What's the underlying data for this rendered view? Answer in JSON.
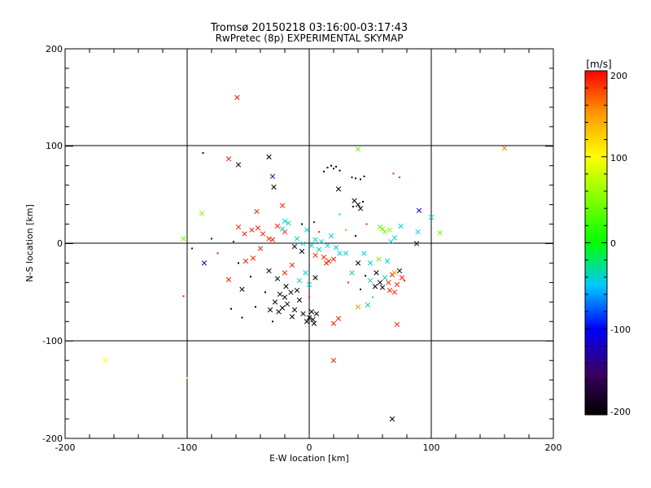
{
  "chart_data": {
    "type": "scatter",
    "title": "Tromsø 20150218 03:16:00-03:17:43",
    "subtitle": "RwPretec (8p) EXPERIMENTAL SKYMAP",
    "xlabel": "E-W location [km]",
    "ylabel": "N-S location [km]",
    "xlim": [
      -200,
      200
    ],
    "ylim": [
      -200,
      200
    ],
    "xticks": [
      "-200",
      "-100",
      "0",
      "100",
      "200"
    ],
    "yticks": [
      "-200",
      "-100",
      "0",
      "100",
      "200"
    ],
    "grid": true,
    "colorbar": {
      "title": "[m/s]",
      "range": [
        -200,
        200
      ],
      "ticks": [
        "-200",
        "-100",
        "0",
        "100",
        "200"
      ]
    },
    "points": [
      {
        "x": -59,
        "y": 150,
        "v": 200,
        "m": "x"
      },
      {
        "x": 160,
        "y": 98,
        "v": 160,
        "m": "x"
      },
      {
        "x": -33,
        "y": 89,
        "v": -200,
        "m": "x"
      },
      {
        "x": -66,
        "y": 87,
        "v": 190,
        "m": "x"
      },
      {
        "x": -58,
        "y": 81,
        "v": -200,
        "m": "x"
      },
      {
        "x": -87,
        "y": 93,
        "v": -200,
        "m": "d"
      },
      {
        "x": 40,
        "y": 97,
        "v": 40,
        "m": "x"
      },
      {
        "x": -30,
        "y": 69,
        "v": -120,
        "m": "x"
      },
      {
        "x": -29,
        "y": 58,
        "v": -200,
        "m": "x"
      },
      {
        "x": 24,
        "y": 56,
        "v": -200,
        "m": "x"
      },
      {
        "x": 15,
        "y": 78,
        "v": -200,
        "m": "d"
      },
      {
        "x": 18,
        "y": 80,
        "v": -200,
        "m": "d"
      },
      {
        "x": 20,
        "y": 77,
        "v": -200,
        "m": "d"
      },
      {
        "x": 22,
        "y": 79,
        "v": -200,
        "m": "d"
      },
      {
        "x": 12,
        "y": 74,
        "v": -200,
        "m": "d"
      },
      {
        "x": 25,
        "y": 75,
        "v": -200,
        "m": "d"
      },
      {
        "x": 35,
        "y": 68,
        "v": -200,
        "m": "d"
      },
      {
        "x": 38,
        "y": 67,
        "v": -200,
        "m": "d"
      },
      {
        "x": 42,
        "y": 66,
        "v": -200,
        "m": "d"
      },
      {
        "x": 45,
        "y": 69,
        "v": -200,
        "m": "d"
      },
      {
        "x": 37,
        "y": 44,
        "v": -200,
        "m": "x"
      },
      {
        "x": 40,
        "y": 40,
        "v": -200,
        "m": "x"
      },
      {
        "x": 42,
        "y": 36,
        "v": -200,
        "m": "x"
      },
      {
        "x": 36,
        "y": 38,
        "v": -200,
        "m": "d"
      },
      {
        "x": 44,
        "y": 43,
        "v": -200,
        "m": "d"
      },
      {
        "x": 69,
        "y": 72,
        "v": 190,
        "m": "d"
      },
      {
        "x": 74,
        "y": 68,
        "v": 190,
        "m": "d"
      },
      {
        "x": -43,
        "y": 33,
        "v": 190,
        "m": "x"
      },
      {
        "x": -22,
        "y": 39,
        "v": 190,
        "m": "x"
      },
      {
        "x": -88,
        "y": 31,
        "v": 50,
        "m": "x"
      },
      {
        "x": 90,
        "y": 34,
        "v": -120,
        "m": "x"
      },
      {
        "x": 100,
        "y": 27,
        "v": -40,
        "m": "x"
      },
      {
        "x": 107,
        "y": 11,
        "v": 40,
        "m": "x"
      },
      {
        "x": -103,
        "y": 5,
        "v": 40,
        "m": "x"
      },
      {
        "x": -96,
        "y": -5,
        "v": -120,
        "m": "d"
      },
      {
        "x": -86,
        "y": -20,
        "v": -120,
        "m": "x"
      },
      {
        "x": -103,
        "y": -54,
        "v": 190,
        "m": "d"
      },
      {
        "x": -58,
        "y": 17,
        "v": 190,
        "m": "x"
      },
      {
        "x": -53,
        "y": 10,
        "v": 190,
        "m": "x"
      },
      {
        "x": -47,
        "y": 14,
        "v": 190,
        "m": "x"
      },
      {
        "x": -42,
        "y": 16,
        "v": 190,
        "m": "x"
      },
      {
        "x": -38,
        "y": 10,
        "v": 190,
        "m": "x"
      },
      {
        "x": -33,
        "y": 5,
        "v": 190,
        "m": "x"
      },
      {
        "x": -26,
        "y": 18,
        "v": 190,
        "m": "x"
      },
      {
        "x": -30,
        "y": 4,
        "v": 190,
        "m": "x"
      },
      {
        "x": -20,
        "y": 12,
        "v": 190,
        "m": "x"
      },
      {
        "x": -40,
        "y": -5,
        "v": 190,
        "m": "x"
      },
      {
        "x": -46,
        "y": -15,
        "v": 190,
        "m": "x"
      },
      {
        "x": -52,
        "y": -18,
        "v": 190,
        "m": "x"
      },
      {
        "x": -58,
        "y": -20,
        "v": -200,
        "m": "d"
      },
      {
        "x": -66,
        "y": -37,
        "v": 190,
        "m": "x"
      },
      {
        "x": -55,
        "y": -47,
        "v": -200,
        "m": "x"
      },
      {
        "x": -62,
        "y": 2,
        "v": -120,
        "m": "d"
      },
      {
        "x": -75,
        "y": -10,
        "v": 190,
        "m": "d"
      },
      {
        "x": -80,
        "y": 5,
        "v": -120,
        "m": "d"
      },
      {
        "x": -20,
        "y": 23,
        "v": -40,
        "m": "x"
      },
      {
        "x": -17,
        "y": 21,
        "v": -40,
        "m": "x"
      },
      {
        "x": -22,
        "y": 15,
        "v": -40,
        "m": "x"
      },
      {
        "x": -10,
        "y": 5,
        "v": -40,
        "m": "x"
      },
      {
        "x": -5,
        "y": 0,
        "v": -40,
        "m": "x"
      },
      {
        "x": -2,
        "y": 14,
        "v": -40,
        "m": "x"
      },
      {
        "x": 2,
        "y": -2,
        "v": -40,
        "m": "x"
      },
      {
        "x": 5,
        "y": 4,
        "v": -40,
        "m": "x"
      },
      {
        "x": 8,
        "y": -6,
        "v": -40,
        "m": "x"
      },
      {
        "x": 10,
        "y": 2,
        "v": -40,
        "m": "x"
      },
      {
        "x": 15,
        "y": -2,
        "v": -40,
        "m": "x"
      },
      {
        "x": 18,
        "y": 8,
        "v": -40,
        "m": "x"
      },
      {
        "x": 22,
        "y": -4,
        "v": -40,
        "m": "x"
      },
      {
        "x": 25,
        "y": -10,
        "v": -40,
        "m": "x"
      },
      {
        "x": 12,
        "y": -14,
        "v": 190,
        "m": "x"
      },
      {
        "x": 16,
        "y": -18,
        "v": 190,
        "m": "x"
      },
      {
        "x": 20,
        "y": -16,
        "v": 190,
        "m": "x"
      },
      {
        "x": 14,
        "y": -20,
        "v": 190,
        "m": "x"
      },
      {
        "x": 5,
        "y": -12,
        "v": 190,
        "m": "x"
      },
      {
        "x": -6,
        "y": -8,
        "v": -200,
        "m": "x"
      },
      {
        "x": -12,
        "y": -3,
        "v": -200,
        "m": "x"
      },
      {
        "x": -14,
        "y": -22,
        "v": 190,
        "m": "x"
      },
      {
        "x": -20,
        "y": -30,
        "v": 190,
        "m": "x"
      },
      {
        "x": -26,
        "y": -36,
        "v": -200,
        "m": "x"
      },
      {
        "x": -33,
        "y": -28,
        "v": -200,
        "m": "x"
      },
      {
        "x": -3,
        "y": -30,
        "v": -40,
        "m": "x"
      },
      {
        "x": -8,
        "y": -38,
        "v": -40,
        "m": "x"
      },
      {
        "x": 0,
        "y": -42,
        "v": -40,
        "m": "x"
      },
      {
        "x": 5,
        "y": -35,
        "v": -200,
        "m": "x"
      },
      {
        "x": -15,
        "y": -50,
        "v": -200,
        "m": "x"
      },
      {
        "x": -20,
        "y": -55,
        "v": -200,
        "m": "x"
      },
      {
        "x": -18,
        "y": -62,
        "v": -200,
        "m": "x"
      },
      {
        "x": -22,
        "y": -66,
        "v": -200,
        "m": "x"
      },
      {
        "x": -25,
        "y": -70,
        "v": -200,
        "m": "x"
      },
      {
        "x": -12,
        "y": -68,
        "v": -200,
        "m": "x"
      },
      {
        "x": -8,
        "y": -58,
        "v": -200,
        "m": "x"
      },
      {
        "x": -14,
        "y": -75,
        "v": -200,
        "m": "x"
      },
      {
        "x": -28,
        "y": -60,
        "v": -200,
        "m": "x"
      },
      {
        "x": -32,
        "y": -68,
        "v": -200,
        "m": "x"
      },
      {
        "x": -10,
        "y": -48,
        "v": -200,
        "m": "x"
      },
      {
        "x": -5,
        "y": -72,
        "v": -200,
        "m": "x"
      },
      {
        "x": 0,
        "y": -76,
        "v": -200,
        "m": "x"
      },
      {
        "x": 3,
        "y": -78,
        "v": -200,
        "m": "x"
      },
      {
        "x": 6,
        "y": -72,
        "v": -200,
        "m": "x"
      },
      {
        "x": 2,
        "y": -70,
        "v": -200,
        "m": "x"
      },
      {
        "x": -2,
        "y": -80,
        "v": -200,
        "m": "x"
      },
      {
        "x": 4,
        "y": -82,
        "v": -200,
        "m": "x"
      },
      {
        "x": -24,
        "y": -52,
        "v": -200,
        "m": "x"
      },
      {
        "x": -19,
        "y": -44,
        "v": -200,
        "m": "x"
      },
      {
        "x": 20,
        "y": -120,
        "v": 190,
        "m": "x"
      },
      {
        "x": 20,
        "y": -82,
        "v": 190,
        "m": "x"
      },
      {
        "x": 24,
        "y": -77,
        "v": 190,
        "m": "x"
      },
      {
        "x": 40,
        "y": -65,
        "v": 150,
        "m": "x"
      },
      {
        "x": 48,
        "y": -63,
        "v": -40,
        "m": "x"
      },
      {
        "x": 52,
        "y": -55,
        "v": -40,
        "m": "d"
      },
      {
        "x": 72,
        "y": -83,
        "v": 190,
        "m": "x"
      },
      {
        "x": 68,
        "y": -180,
        "v": -200,
        "m": "x"
      },
      {
        "x": -167,
        "y": -120,
        "v": 100,
        "m": "x"
      },
      {
        "x": -100,
        "y": -138,
        "v": 100,
        "m": "d"
      },
      {
        "x": 60,
        "y": 15,
        "v": 40,
        "m": "x"
      },
      {
        "x": 62,
        "y": 12,
        "v": 40,
        "m": "x"
      },
      {
        "x": 66,
        "y": 14,
        "v": 60,
        "m": "x"
      },
      {
        "x": 58,
        "y": 17,
        "v": 40,
        "m": "x"
      },
      {
        "x": 75,
        "y": 18,
        "v": -40,
        "m": "x"
      },
      {
        "x": 70,
        "y": 6,
        "v": -40,
        "m": "x"
      },
      {
        "x": 89,
        "y": 12,
        "v": -40,
        "m": "x"
      },
      {
        "x": 88,
        "y": 0,
        "v": -200,
        "m": "x"
      },
      {
        "x": 67,
        "y": 2,
        "v": -40,
        "m": "x"
      },
      {
        "x": 47,
        "y": 20,
        "v": 190,
        "m": "d"
      },
      {
        "x": 38,
        "y": 8,
        "v": -200,
        "m": "d"
      },
      {
        "x": 30,
        "y": 14,
        "v": 150,
        "m": "d"
      },
      {
        "x": 45,
        "y": -10,
        "v": -40,
        "m": "x"
      },
      {
        "x": 50,
        "y": -20,
        "v": -40,
        "m": "x"
      },
      {
        "x": 55,
        "y": -30,
        "v": -200,
        "m": "x"
      },
      {
        "x": 58,
        "y": -40,
        "v": -200,
        "m": "x"
      },
      {
        "x": 60,
        "y": -45,
        "v": -200,
        "m": "x"
      },
      {
        "x": 62,
        "y": -35,
        "v": -40,
        "m": "x"
      },
      {
        "x": 65,
        "y": -40,
        "v": 190,
        "m": "x"
      },
      {
        "x": 68,
        "y": -32,
        "v": 190,
        "m": "x"
      },
      {
        "x": 72,
        "y": -42,
        "v": 190,
        "m": "x"
      },
      {
        "x": 70,
        "y": -30,
        "v": 150,
        "m": "x"
      },
      {
        "x": 74,
        "y": -28,
        "v": -200,
        "m": "x"
      },
      {
        "x": 76,
        "y": -35,
        "v": 190,
        "m": "x"
      },
      {
        "x": 66,
        "y": -48,
        "v": 190,
        "m": "x"
      },
      {
        "x": 70,
        "y": -50,
        "v": 190,
        "m": "x"
      },
      {
        "x": 54,
        "y": -44,
        "v": -200,
        "m": "x"
      },
      {
        "x": 50,
        "y": -38,
        "v": -40,
        "m": "x"
      },
      {
        "x": 57,
        "y": -16,
        "v": 40,
        "m": "x"
      },
      {
        "x": 64,
        "y": -18,
        "v": -40,
        "m": "x"
      },
      {
        "x": 40,
        "y": -20,
        "v": -200,
        "m": "x"
      },
      {
        "x": 35,
        "y": -30,
        "v": -40,
        "m": "x"
      },
      {
        "x": 30,
        "y": -10,
        "v": -40,
        "m": "x"
      },
      {
        "x": 32,
        "y": -40,
        "v": 190,
        "m": "d"
      },
      {
        "x": 78,
        "y": -38,
        "v": 190,
        "m": "d"
      },
      {
        "x": 25,
        "y": 30,
        "v": -40,
        "m": "d"
      },
      {
        "x": 46,
        "y": -33,
        "v": -200,
        "m": "d"
      },
      {
        "x": 42,
        "y": -47,
        "v": -200,
        "m": "d"
      },
      {
        "x": -36,
        "y": -50,
        "v": -200,
        "m": "d"
      },
      {
        "x": -48,
        "y": -34,
        "v": -200,
        "m": "d"
      },
      {
        "x": -64,
        "y": -67,
        "v": -200,
        "m": "d"
      },
      {
        "x": -44,
        "y": -65,
        "v": -200,
        "m": "d"
      },
      {
        "x": -55,
        "y": -76,
        "v": -200,
        "m": "d"
      },
      {
        "x": -6,
        "y": 20,
        "v": -200,
        "m": "d"
      },
      {
        "x": 4,
        "y": 22,
        "v": -120,
        "m": "d"
      },
      {
        "x": 8,
        "y": 12,
        "v": 190,
        "m": "d"
      },
      {
        "x": -30,
        "y": -80,
        "v": -200,
        "m": "d"
      },
      {
        "x": 0,
        "y": -55,
        "v": 190,
        "m": "d"
      }
    ]
  }
}
